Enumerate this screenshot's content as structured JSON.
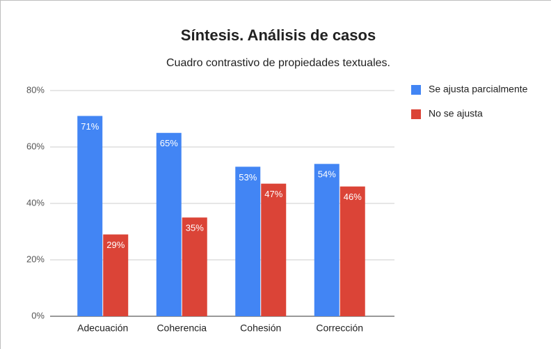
{
  "chart_data": {
    "type": "bar",
    "title": "Síntesis. Análisis de casos",
    "subtitle": "Cuadro contrastivo de propiedades textuales.",
    "categories": [
      "Adecuación",
      "Coherencia",
      "Cohesión",
      "Corrección"
    ],
    "series": [
      {
        "name": "Se ajusta parcialmente",
        "color": "#4285f4",
        "values": [
          71,
          65,
          53,
          54
        ],
        "value_labels": [
          "71%",
          "65%",
          "53%",
          "54%"
        ]
      },
      {
        "name": "No se ajusta",
        "color": "#db4437",
        "values": [
          29,
          35,
          47,
          46
        ],
        "value_labels": [
          "29%",
          "35%",
          "47%",
          "46%"
        ]
      }
    ],
    "ylim": [
      0,
      80
    ],
    "yticks": [
      {
        "value": 0,
        "label": "0%"
      },
      {
        "value": 20,
        "label": "20%"
      },
      {
        "value": 40,
        "label": "40%"
      },
      {
        "value": 60,
        "label": "60%"
      },
      {
        "value": 80,
        "label": "80%"
      }
    ],
    "grid": true,
    "legend": "right"
  }
}
